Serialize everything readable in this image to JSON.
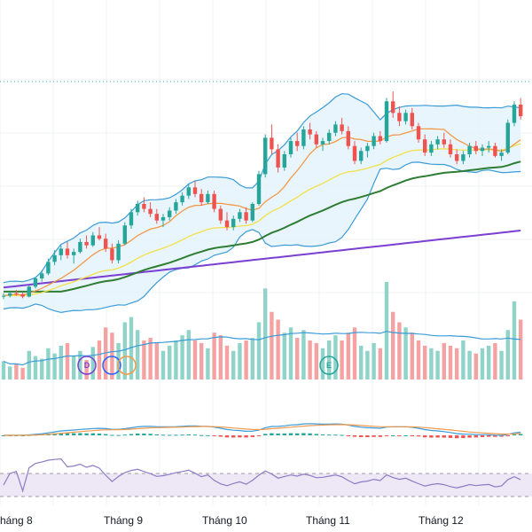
{
  "colors": {
    "up": "#26a69a",
    "down": "#ef5350",
    "volume_up": "#8fd3c9",
    "volume_down": "#f4a3a2",
    "bb_line": "#3a9bd9",
    "bb_fill": "#e3f2fb",
    "ma_short": "#f2994a",
    "ma_mid": "#f2e04a",
    "ma_long": "#2e7d32",
    "ma_xlong": "#7b3fd1",
    "vol_ma": "#3a9bd9",
    "macd_signal": "#f2994a",
    "macd_line": "#3a9bd9",
    "rsi_line": "#8e7cc3",
    "rsi_band": "#ede7f6",
    "grid": "#eef0f3",
    "dotted_level": "#2aa5a1"
  },
  "x_axis": {
    "labels": [
      "háng 8",
      "Tháng 9",
      "Tháng 10",
      "Tháng 11",
      "Tháng 12"
    ]
  },
  "markers": [
    {
      "name": "dividend-marker",
      "letter": "D",
      "color": "#7b3fd1"
    },
    {
      "name": "split-marker",
      "letter": "",
      "color": "#2962ff"
    },
    {
      "name": "event-marker",
      "letter": "",
      "color": "#f2994a"
    },
    {
      "name": "earnings-marker",
      "letter": "E",
      "color": "#26a69a"
    }
  ],
  "chart_data": {
    "type": "candlestick",
    "grid": true,
    "panes": [
      "price",
      "volume",
      "macd",
      "rsi"
    ],
    "candles": [
      [
        31.8,
        32.2,
        31.5,
        31.9
      ],
      [
        31.9,
        32.4,
        31.7,
        32.2
      ],
      [
        32.2,
        32.6,
        31.9,
        32.1
      ],
      [
        32.1,
        32.3,
        31.6,
        31.8
      ],
      [
        31.8,
        33.2,
        31.7,
        33.0
      ],
      [
        33.0,
        34.2,
        32.8,
        34.0
      ],
      [
        34.0,
        35.0,
        33.6,
        34.6
      ],
      [
        34.6,
        36.4,
        34.4,
        36.0
      ],
      [
        36.0,
        37.4,
        35.6,
        36.8
      ],
      [
        36.8,
        38.0,
        36.2,
        37.6
      ],
      [
        37.6,
        38.4,
        36.4,
        36.8
      ],
      [
        36.8,
        37.6,
        35.8,
        37.2
      ],
      [
        37.2,
        38.8,
        37.0,
        38.4
      ],
      [
        38.4,
        39.2,
        37.6,
        38.0
      ],
      [
        38.0,
        39.6,
        37.8,
        39.2
      ],
      [
        39.2,
        40.2,
        38.6,
        38.8
      ],
      [
        38.8,
        39.4,
        37.2,
        37.6
      ],
      [
        37.6,
        38.2,
        35.8,
        36.2
      ],
      [
        36.2,
        38.6,
        35.8,
        38.2
      ],
      [
        38.2,
        40.8,
        38.0,
        40.4
      ],
      [
        40.4,
        42.4,
        40.0,
        42.0
      ],
      [
        42.0,
        43.4,
        41.6,
        43.0
      ],
      [
        43.0,
        43.8,
        42.0,
        42.4
      ],
      [
        42.4,
        43.2,
        41.4,
        41.8
      ],
      [
        41.8,
        42.4,
        40.6,
        41.0
      ],
      [
        41.0,
        41.8,
        40.2,
        41.4
      ],
      [
        41.4,
        42.6,
        41.0,
        42.2
      ],
      [
        42.2,
        43.6,
        41.8,
        43.2
      ],
      [
        43.2,
        44.4,
        42.8,
        44.0
      ],
      [
        44.0,
        45.4,
        43.6,
        45.0
      ],
      [
        45.0,
        45.8,
        43.8,
        44.2
      ],
      [
        44.2,
        44.8,
        42.8,
        43.2
      ],
      [
        43.2,
        44.6,
        43.0,
        44.2
      ],
      [
        44.2,
        44.6,
        42.0,
        42.4
      ],
      [
        42.4,
        42.8,
        40.6,
        41.0
      ],
      [
        41.0,
        42.0,
        39.8,
        40.2
      ],
      [
        40.2,
        41.6,
        39.8,
        41.2
      ],
      [
        41.2,
        42.4,
        40.8,
        42.0
      ],
      [
        42.0,
        42.6,
        40.6,
        41.0
      ],
      [
        41.0,
        43.2,
        40.8,
        43.0
      ],
      [
        43.0,
        47.0,
        42.8,
        46.6
      ],
      [
        46.6,
        51.4,
        46.2,
        51.0
      ],
      [
        51.0,
        52.6,
        49.0,
        49.6
      ],
      [
        49.6,
        50.2,
        46.8,
        47.4
      ],
      [
        47.4,
        49.4,
        47.0,
        49.0
      ],
      [
        49.0,
        51.0,
        48.6,
        50.6
      ],
      [
        50.6,
        51.6,
        49.4,
        50.0
      ],
      [
        50.0,
        52.4,
        49.6,
        52.0
      ],
      [
        52.0,
        52.8,
        50.8,
        51.4
      ],
      [
        51.4,
        51.8,
        49.8,
        50.2
      ],
      [
        50.2,
        51.0,
        49.4,
        50.6
      ],
      [
        50.6,
        52.0,
        50.2,
        51.6
      ],
      [
        51.6,
        53.0,
        51.2,
        52.6
      ],
      [
        52.6,
        53.4,
        51.4,
        51.8
      ],
      [
        51.8,
        52.4,
        49.6,
        50.0
      ],
      [
        50.0,
        50.6,
        47.8,
        48.2
      ],
      [
        48.2,
        49.8,
        47.8,
        49.4
      ],
      [
        49.4,
        50.4,
        48.6,
        50.0
      ],
      [
        50.0,
        51.6,
        49.6,
        51.2
      ],
      [
        51.2,
        51.8,
        50.2,
        50.6
      ],
      [
        50.6,
        55.8,
        50.4,
        55.4
      ],
      [
        55.4,
        56.6,
        53.4,
        54.0
      ],
      [
        54.0,
        54.8,
        52.4,
        53.0
      ],
      [
        53.0,
        54.4,
        52.6,
        54.0
      ],
      [
        54.0,
        54.6,
        52.0,
        52.4
      ],
      [
        52.4,
        52.8,
        50.4,
        50.8
      ],
      [
        50.8,
        51.4,
        48.8,
        49.2
      ],
      [
        49.2,
        50.6,
        48.8,
        50.2
      ],
      [
        50.2,
        51.2,
        49.6,
        50.8
      ],
      [
        50.8,
        51.6,
        49.8,
        50.2
      ],
      [
        50.2,
        50.8,
        48.6,
        49.0
      ],
      [
        49.0,
        49.6,
        47.8,
        48.2
      ],
      [
        48.2,
        49.4,
        47.8,
        49.0
      ],
      [
        49.0,
        50.4,
        48.6,
        50.0
      ],
      [
        50.0,
        50.6,
        49.0,
        49.4
      ],
      [
        49.4,
        50.2,
        48.8,
        49.8
      ],
      [
        49.8,
        50.6,
        49.2,
        50.0
      ],
      [
        50.0,
        50.4,
        48.6,
        48.8
      ],
      [
        48.8,
        49.6,
        48.2,
        49.2
      ],
      [
        49.2,
        53.2,
        49.0,
        52.8
      ],
      [
        52.8,
        55.4,
        52.4,
        55.0
      ],
      [
        55.0,
        55.8,
        53.2,
        53.6
      ]
    ],
    "volume": [
      14,
      10,
      12,
      9,
      22,
      18,
      16,
      24,
      20,
      26,
      28,
      18,
      22,
      15,
      25,
      30,
      40,
      36,
      28,
      44,
      48,
      38,
      30,
      32,
      28,
      22,
      26,
      30,
      34,
      38,
      30,
      28,
      24,
      36,
      34,
      26,
      22,
      28,
      30,
      32,
      44,
      70,
      52,
      46,
      36,
      40,
      32,
      38,
      30,
      28,
      24,
      30,
      34,
      30,
      36,
      40,
      26,
      22,
      28,
      24,
      75,
      52,
      44,
      40,
      36,
      30,
      26,
      24,
      22,
      28,
      26,
      24,
      30,
      22,
      20,
      24,
      26,
      28,
      22,
      38,
      60,
      46
    ]
  }
}
